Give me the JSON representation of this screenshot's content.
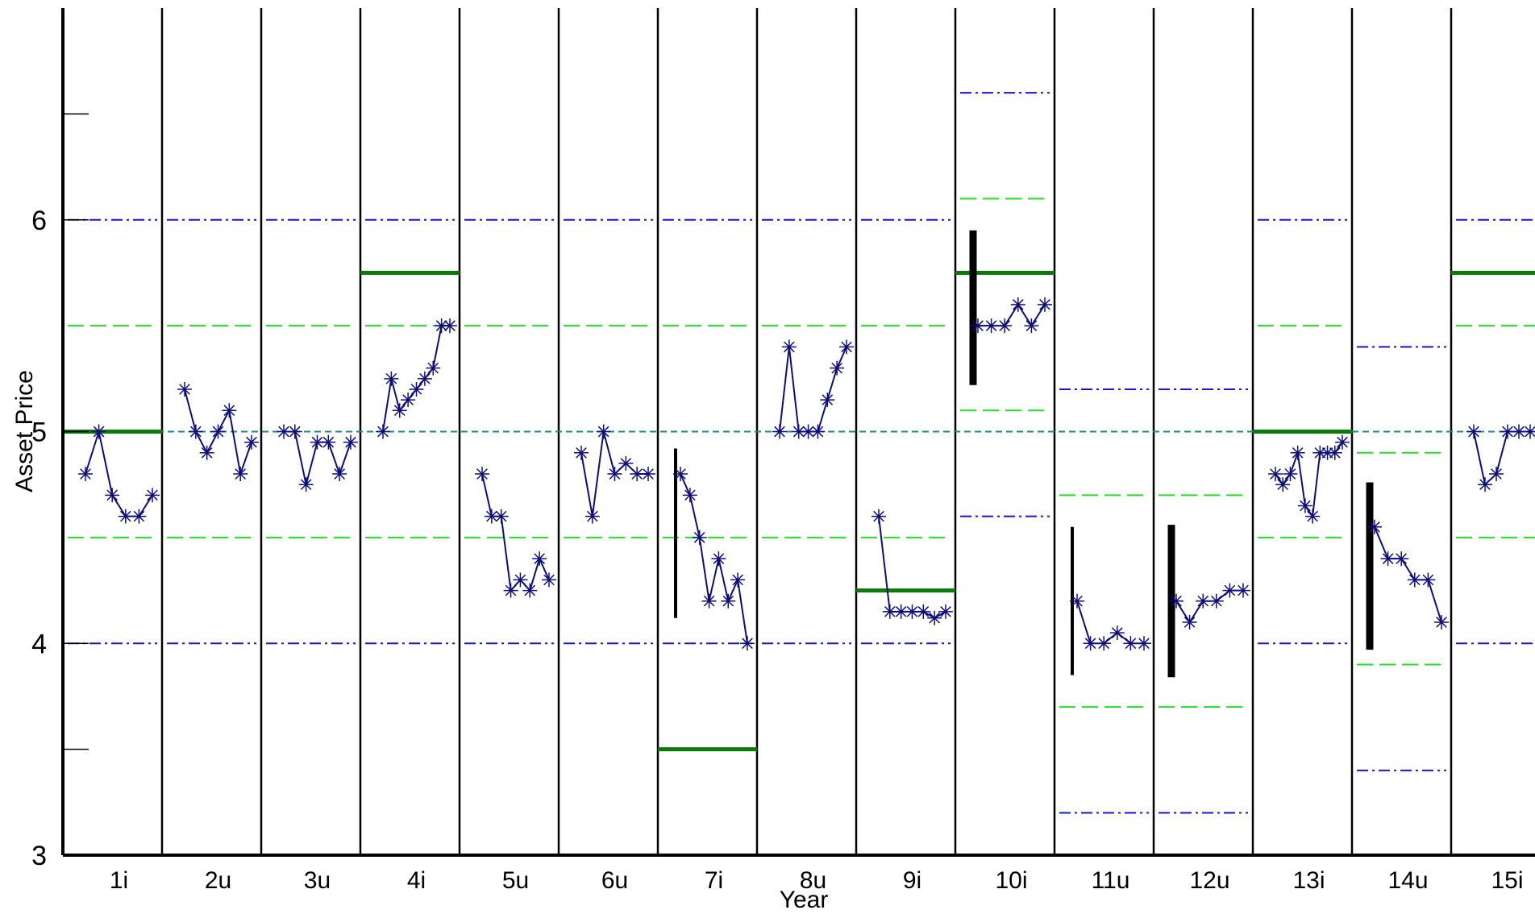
{
  "chart_data": {
    "type": "line",
    "xlabel": "Year",
    "ylabel": "Asset Price",
    "ylim": [
      3,
      7
    ],
    "yticks": [
      3,
      4,
      5,
      6
    ],
    "ytick_labels": [
      "3",
      "4",
      "5",
      "6"
    ],
    "minor_yticks": [
      3.5,
      6.5
    ],
    "categories": [
      "1i",
      "2u",
      "3u",
      "4i",
      "5u",
      "6u",
      "7i",
      "8u",
      "9i",
      "10i",
      "11u",
      "12u",
      "13i",
      "14u",
      "15i"
    ],
    "reference_line": 5,
    "grid": false,
    "legend": "none",
    "colors": {
      "price": "#0d0d80",
      "blue_band": "#1515e0",
      "green_band": "#22e022",
      "strike": "#0b7a0b",
      "reference": "#1a8a8a",
      "range_bar": "#000000"
    },
    "panels": [
      {
        "label": "1i",
        "prices": [
          4.8,
          5.0,
          4.7,
          4.6,
          4.6,
          4.7
        ],
        "strike": 5.0,
        "range": null,
        "blue": [
          4,
          6
        ],
        "green": [
          4.5,
          5.5
        ]
      },
      {
        "label": "2u",
        "prices": [
          5.2,
          5.0,
          4.9,
          5.0,
          5.1,
          4.8,
          4.95
        ],
        "strike": null,
        "range": null,
        "blue": [
          4,
          6
        ],
        "green": [
          4.5,
          5.5
        ]
      },
      {
        "label": "3u",
        "prices": [
          5.0,
          5.0,
          4.75,
          4.95,
          4.95,
          4.8,
          4.95
        ],
        "strike": null,
        "range": null,
        "blue": [
          4,
          6
        ],
        "green": [
          4.5,
          5.5
        ]
      },
      {
        "label": "4i",
        "prices": [
          5.0,
          5.25,
          5.1,
          5.15,
          5.2,
          5.25,
          5.3,
          5.5,
          5.5
        ],
        "strike": 5.75,
        "range": null,
        "blue": [
          4,
          6
        ],
        "green": [
          4.5,
          5.5
        ]
      },
      {
        "label": "5u",
        "prices": [
          4.8,
          4.6,
          4.6,
          4.25,
          4.3,
          4.25,
          4.4,
          4.3
        ],
        "strike": null,
        "range": null,
        "blue": [
          4,
          6
        ],
        "green": [
          4.5,
          5.5
        ]
      },
      {
        "label": "6u",
        "prices": [
          4.9,
          4.6,
          5.0,
          4.8,
          4.85,
          4.8,
          4.8
        ],
        "strike": null,
        "range": null,
        "blue": [
          4,
          6
        ],
        "green": [
          4.5,
          5.5
        ]
      },
      {
        "label": "7i",
        "prices": [
          4.8,
          4.7,
          4.5,
          4.2,
          4.4,
          4.2,
          4.3,
          4.0
        ],
        "strike": 3.5,
        "range": [
          4.12,
          4.92
        ],
        "blue": [
          4,
          6
        ],
        "green": [
          4.5,
          5.5
        ]
      },
      {
        "label": "8u",
        "prices": [
          5.0,
          5.4,
          5.0,
          5.0,
          5.0,
          5.15,
          5.3,
          5.4
        ],
        "strike": null,
        "range": null,
        "blue": [
          4,
          6
        ],
        "green": [
          4.5,
          5.5
        ]
      },
      {
        "label": "9i",
        "prices": [
          4.6,
          4.15,
          4.15,
          4.15,
          4.15,
          4.12,
          4.15
        ],
        "strike": 4.25,
        "range": null,
        "blue": [
          4,
          6
        ],
        "green": [
          4.5,
          5.5
        ]
      },
      {
        "label": "10i",
        "prices": [
          5.5,
          5.5,
          5.5,
          5.6,
          5.5,
          5.6
        ],
        "strike": 5.75,
        "range": [
          5.22,
          5.95
        ],
        "blue": [
          4.6,
          6.6
        ],
        "green": [
          5.1,
          6.1
        ]
      },
      {
        "label": "11u",
        "prices": [
          4.2,
          4.0,
          4.0,
          4.05,
          4.0,
          4.0
        ],
        "strike": null,
        "range": [
          3.85,
          4.55
        ],
        "blue": [
          3.2,
          5.2
        ],
        "green": [
          3.7,
          4.7
        ]
      },
      {
        "label": "12u",
        "prices": [
          4.2,
          4.1,
          4.2,
          4.2,
          4.25,
          4.25
        ],
        "strike": null,
        "range": [
          3.84,
          4.56
        ],
        "blue": [
          3.2,
          5.2
        ],
        "green": [
          3.7,
          4.7
        ]
      },
      {
        "label": "13i",
        "prices": [
          4.8,
          4.75,
          4.8,
          4.9,
          4.65,
          4.6,
          4.9,
          4.9,
          4.9,
          4.95
        ],
        "strike": 5.0,
        "range": null,
        "blue": [
          4,
          6
        ],
        "green": [
          4.5,
          5.5
        ]
      },
      {
        "label": "14u",
        "prices": [
          4.55,
          4.4,
          4.4,
          4.3,
          4.3,
          4.1
        ],
        "strike": null,
        "range": [
          3.97,
          4.76
        ],
        "blue": [
          3.4,
          5.4
        ],
        "green": [
          3.9,
          4.9
        ]
      },
      {
        "label": "15i",
        "prices": [
          5.0,
          4.75,
          4.8,
          5.0,
          5.0,
          5.0
        ],
        "strike": 5.75,
        "range": null,
        "blue": [
          4,
          6
        ],
        "green": [
          4.5,
          5.5
        ]
      }
    ]
  }
}
